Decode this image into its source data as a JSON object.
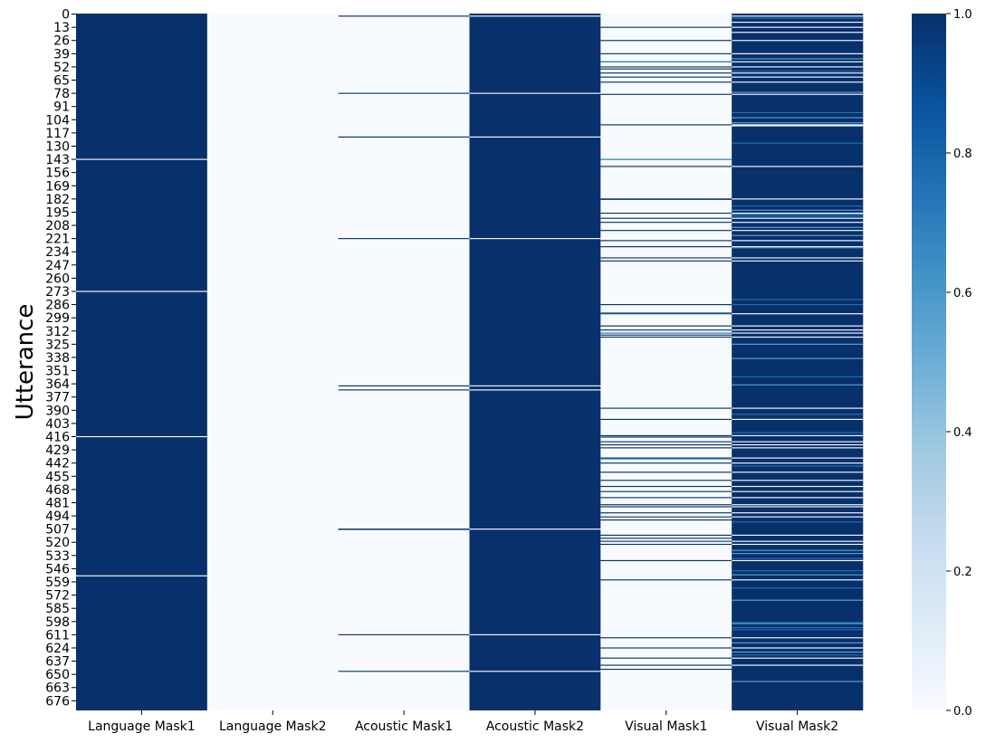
{
  "chart_data": {
    "type": "heatmap",
    "title": "",
    "xlabel": "",
    "ylabel": "Utterance",
    "columns": [
      "Language Mask1",
      "Language Mask2",
      "Acoustic Mask1",
      "Acoustic Mask2",
      "Visual Mask1",
      "Visual Mask2"
    ],
    "row_count": 686,
    "row_ticks": [
      0,
      13,
      26,
      39,
      52,
      65,
      78,
      91,
      104,
      117,
      130,
      143,
      156,
      169,
      182,
      195,
      208,
      221,
      234,
      247,
      260,
      273,
      286,
      299,
      312,
      325,
      338,
      351,
      364,
      377,
      390,
      403,
      416,
      429,
      442,
      455,
      468,
      481,
      494,
      507,
      520,
      533,
      546,
      559,
      572,
      585,
      598,
      611,
      624,
      637,
      650,
      663,
      676
    ],
    "value_range": [
      0,
      1
    ],
    "colormap": "Blues",
    "colors": {
      "low": "#f7fbff",
      "high": "#08306b"
    },
    "colorbar_ticks": [
      "0.0",
      "0.2",
      "0.4",
      "0.6",
      "0.8",
      "1.0"
    ],
    "default_values": [
      1,
      0,
      0,
      1,
      0,
      1
    ],
    "column_exceptions": [
      {
        "column": "Language Mask1",
        "value": 0.0,
        "rows": [
          143,
          273,
          416,
          553
        ]
      },
      {
        "column": "Acoustic Mask1",
        "value": 1.0,
        "rows": [
          2,
          78,
          121,
          221,
          366,
          370,
          507,
          507.3,
          611,
          647
        ]
      },
      {
        "column": "Acoustic Mask2",
        "value": 0.0,
        "rows": [
          2,
          78,
          121,
          221,
          366,
          370,
          507,
          611,
          647
        ]
      },
      {
        "column": "Visual Mask1",
        "value": 1.0,
        "rows": [
          13,
          26,
          39,
          47,
          52,
          54,
          58,
          62,
          67,
          79,
          109,
          143,
          150,
          182,
          182.4,
          196,
          201,
          205,
          213,
          223,
          229,
          240,
          243,
          286,
          295,
          307,
          311,
          314,
          316,
          318,
          388,
          399,
          415,
          416.4,
          421,
          424,
          427,
          437,
          442,
          451,
          459,
          465,
          470,
          476,
          483,
          485,
          491,
          495,
          498,
          513,
          516,
          519,
          522,
          538,
          557,
          614,
          624,
          634,
          641,
          645
        ]
      },
      {
        "column": "Visual Mask1",
        "value": 0.65,
        "rows": [
          47,
          143,
          294,
          314,
          438
        ]
      },
      {
        "column": "Visual Mask2",
        "value": 0.0,
        "rows": [
          2,
          8,
          13,
          18,
          26,
          39,
          47,
          52,
          58,
          62,
          67,
          79,
          109,
          110,
          150,
          182,
          196,
          201,
          205,
          213,
          223,
          229,
          240,
          243,
          295,
          307,
          311,
          314,
          318,
          388,
          399,
          415,
          421,
          424,
          427,
          437,
          442,
          451,
          459,
          465,
          470,
          476,
          483,
          485,
          491,
          495,
          513,
          519,
          522,
          538,
          557,
          614,
          624,
          634,
          641
        ]
      },
      {
        "column": "Visual Mask2",
        "value": 0.55,
        "rows": [
          44,
          77,
          102,
          107,
          193,
          197,
          210,
          218,
          230,
          325,
          339,
          365,
          528,
          531,
          552,
          577,
          600,
          619,
          628,
          657
        ]
      },
      {
        "column": "Visual Mask2",
        "value": 0.75,
        "rows": [
          4,
          56,
          97,
          127,
          189,
          199,
          281,
          286,
          357,
          394,
          412,
          445,
          500,
          536,
          548,
          565,
          599,
          604,
          606,
          631
        ]
      }
    ]
  }
}
